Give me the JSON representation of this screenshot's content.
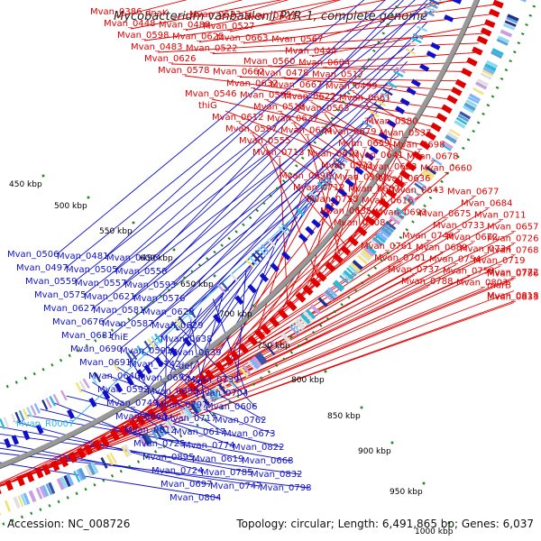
{
  "title": "Mycobacterium vanbaalenii PYR-1, complete genome",
  "footer": {
    "accession": "Accession: NC_008726",
    "summary": "Topology: circular; Length: 6,491,865 bp; Genes: 6,037"
  },
  "colors": {
    "forward": "#e00000",
    "reverse": "#1010c8",
    "rna": "#2ab7e6",
    "backbone": "#999999"
  },
  "scale_labels": [
    "450 kbp",
    "500 kbp",
    "550 kbp",
    "600 kbp",
    "650 kbp",
    "700 kbp",
    "750 kbp",
    "800 kbp",
    "850 kbp",
    "900 kbp",
    "950 kbp",
    "1000 kbp"
  ],
  "forward_genes": [
    "Mvan_0386",
    "dnaK",
    "Mvan_0633",
    "Mvan_0427",
    "Mvan_0448",
    "Mvan_0488",
    "Mvan_0527",
    "Mvan_0567",
    "Mvan_0598",
    "Mvan_0625",
    "Mvan_0663",
    "Mvan_0444",
    "Mvan_0483",
    "Mvan_0522",
    "Mvan_0560",
    "Mvan_0604",
    "Mvan_0626",
    "Mvan_0662",
    "Mvan_0478",
    "Mvan_0517",
    "Mvan_0578",
    "Mvan_0632",
    "Mvan_0667",
    "Mvan_0499",
    "Mvan_0546",
    "Mvan_0595",
    "Mvan_0622",
    "Mvan_0661",
    "thiG",
    "Mvan_0518",
    "Mvan_0563",
    "Mvan_0580",
    "Mvan_0612",
    "Mvan_0637",
    "Mvan_0679",
    "Mvan_0537",
    "Mvan_0597",
    "Mvan_0624",
    "Mvan_0659",
    "Mvan_0698",
    "Mvan_0555",
    "Mvan_0613",
    "Mvan_0641",
    "Mvan_0678",
    "Mvan_0713",
    "Mvan_0573",
    "Mvan_0623",
    "Mvan_0660",
    "Mvan_0696",
    "Mvan_0590",
    "Mvan_0636",
    "Mvan_0677",
    "Mvan_0712",
    "Mvan_0607",
    "Mvan_0643",
    "Mvan_0684",
    "Mvan_0735",
    "Mvan_0616",
    "Mvan_0675",
    "Mvan_0711",
    "Mvan_0635",
    "Mvan_0693",
    "Mvan_0733",
    "Mvan_0657",
    "Mvan_0708",
    "Mvan_0746",
    "Mvan_0672",
    "Mvan_0726",
    "Mvan_0761",
    "Mvan_0689",
    "Mvan_0734",
    "Mvan_0768",
    "Mvan_0701",
    "Mvan_0754",
    "Mvan_0719",
    "Mvan_0786",
    "Mvan_0737",
    "Mvan_0758",
    "Mvan_0772",
    "murB",
    "Mvan_0788",
    "Mvan_0803",
    "Mvan_0818",
    "Mvan_0833"
  ],
  "reverse_genes": [
    "Mvan_0506",
    "Mvan_0481",
    "Mvan_0496",
    "Mvan_0497",
    "Mvan_0505",
    "Mvan_0558",
    "Mvan_0559",
    "Mvan_0557",
    "Mvan_0593",
    "Mvan_0575",
    "Mvan_0621",
    "Mvan_0576",
    "Mvan_0627",
    "Mvan_0581",
    "Mvan_0628",
    "Mvan_0676",
    "Mvan_0587",
    "Mvan_0629",
    "Mvan_0681",
    "thiE",
    "Mvan_0638",
    "Mvan_0690",
    "Mvan_0591",
    "Mvan_0639",
    "Mvan_0691",
    "Mvan_0742",
    "def",
    "Mvan_0640",
    "Mvan_0692",
    "Mvan_0739",
    "Mvan_0592",
    "Mvan_0655",
    "Mvan_0704",
    "Mvan_0749",
    "Mvan_0797",
    "Mvan_0606",
    "Mvan_0664",
    "Mvan_0717",
    "Mvan_0762",
    "Mvan_0812",
    "Mvan_0617",
    "Mvan_0673",
    "Mvan_0725",
    "Mvan_0774",
    "Mvan_0822",
    "Mvan_0895",
    "Mvan_0619",
    "Mvan_0668",
    "Mvan_0724",
    "Mvan_0785",
    "Mvan_0832",
    "Mvan_0697",
    "Mvan_0747",
    "Mvan_0798",
    "Mvan_0804"
  ],
  "rna_genes": [
    "Mvan_R0007"
  ]
}
